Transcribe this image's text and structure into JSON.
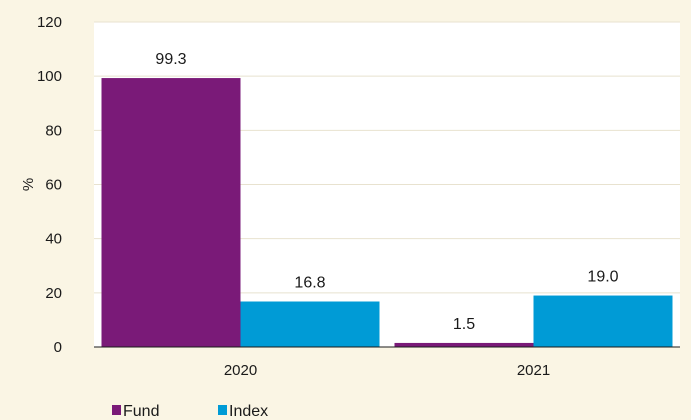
{
  "chart_data": {
    "type": "bar",
    "categories": [
      "2020",
      "2021"
    ],
    "series": [
      {
        "name": "Fund",
        "values": [
          99.3,
          1.5
        ],
        "color": "#7a1a78"
      },
      {
        "name": "Index",
        "values": [
          16.8,
          19.0
        ],
        "color": "#009bd6"
      }
    ],
    "data_labels": [
      [
        "99.3",
        "1.5"
      ],
      [
        "16.8",
        "19.0"
      ]
    ],
    "ylabel": "%",
    "xlabel": "",
    "ylim": [
      0,
      120
    ],
    "yticks": [
      "0",
      "20",
      "40",
      "60",
      "80",
      "100",
      "120"
    ],
    "grid": true,
    "legend_placement": "bottom-left"
  },
  "colors": {
    "background": "#faf5e4",
    "plot_background": "#ffffff",
    "gridline": "#e8e2cf",
    "axis": "#1a1a1a"
  }
}
